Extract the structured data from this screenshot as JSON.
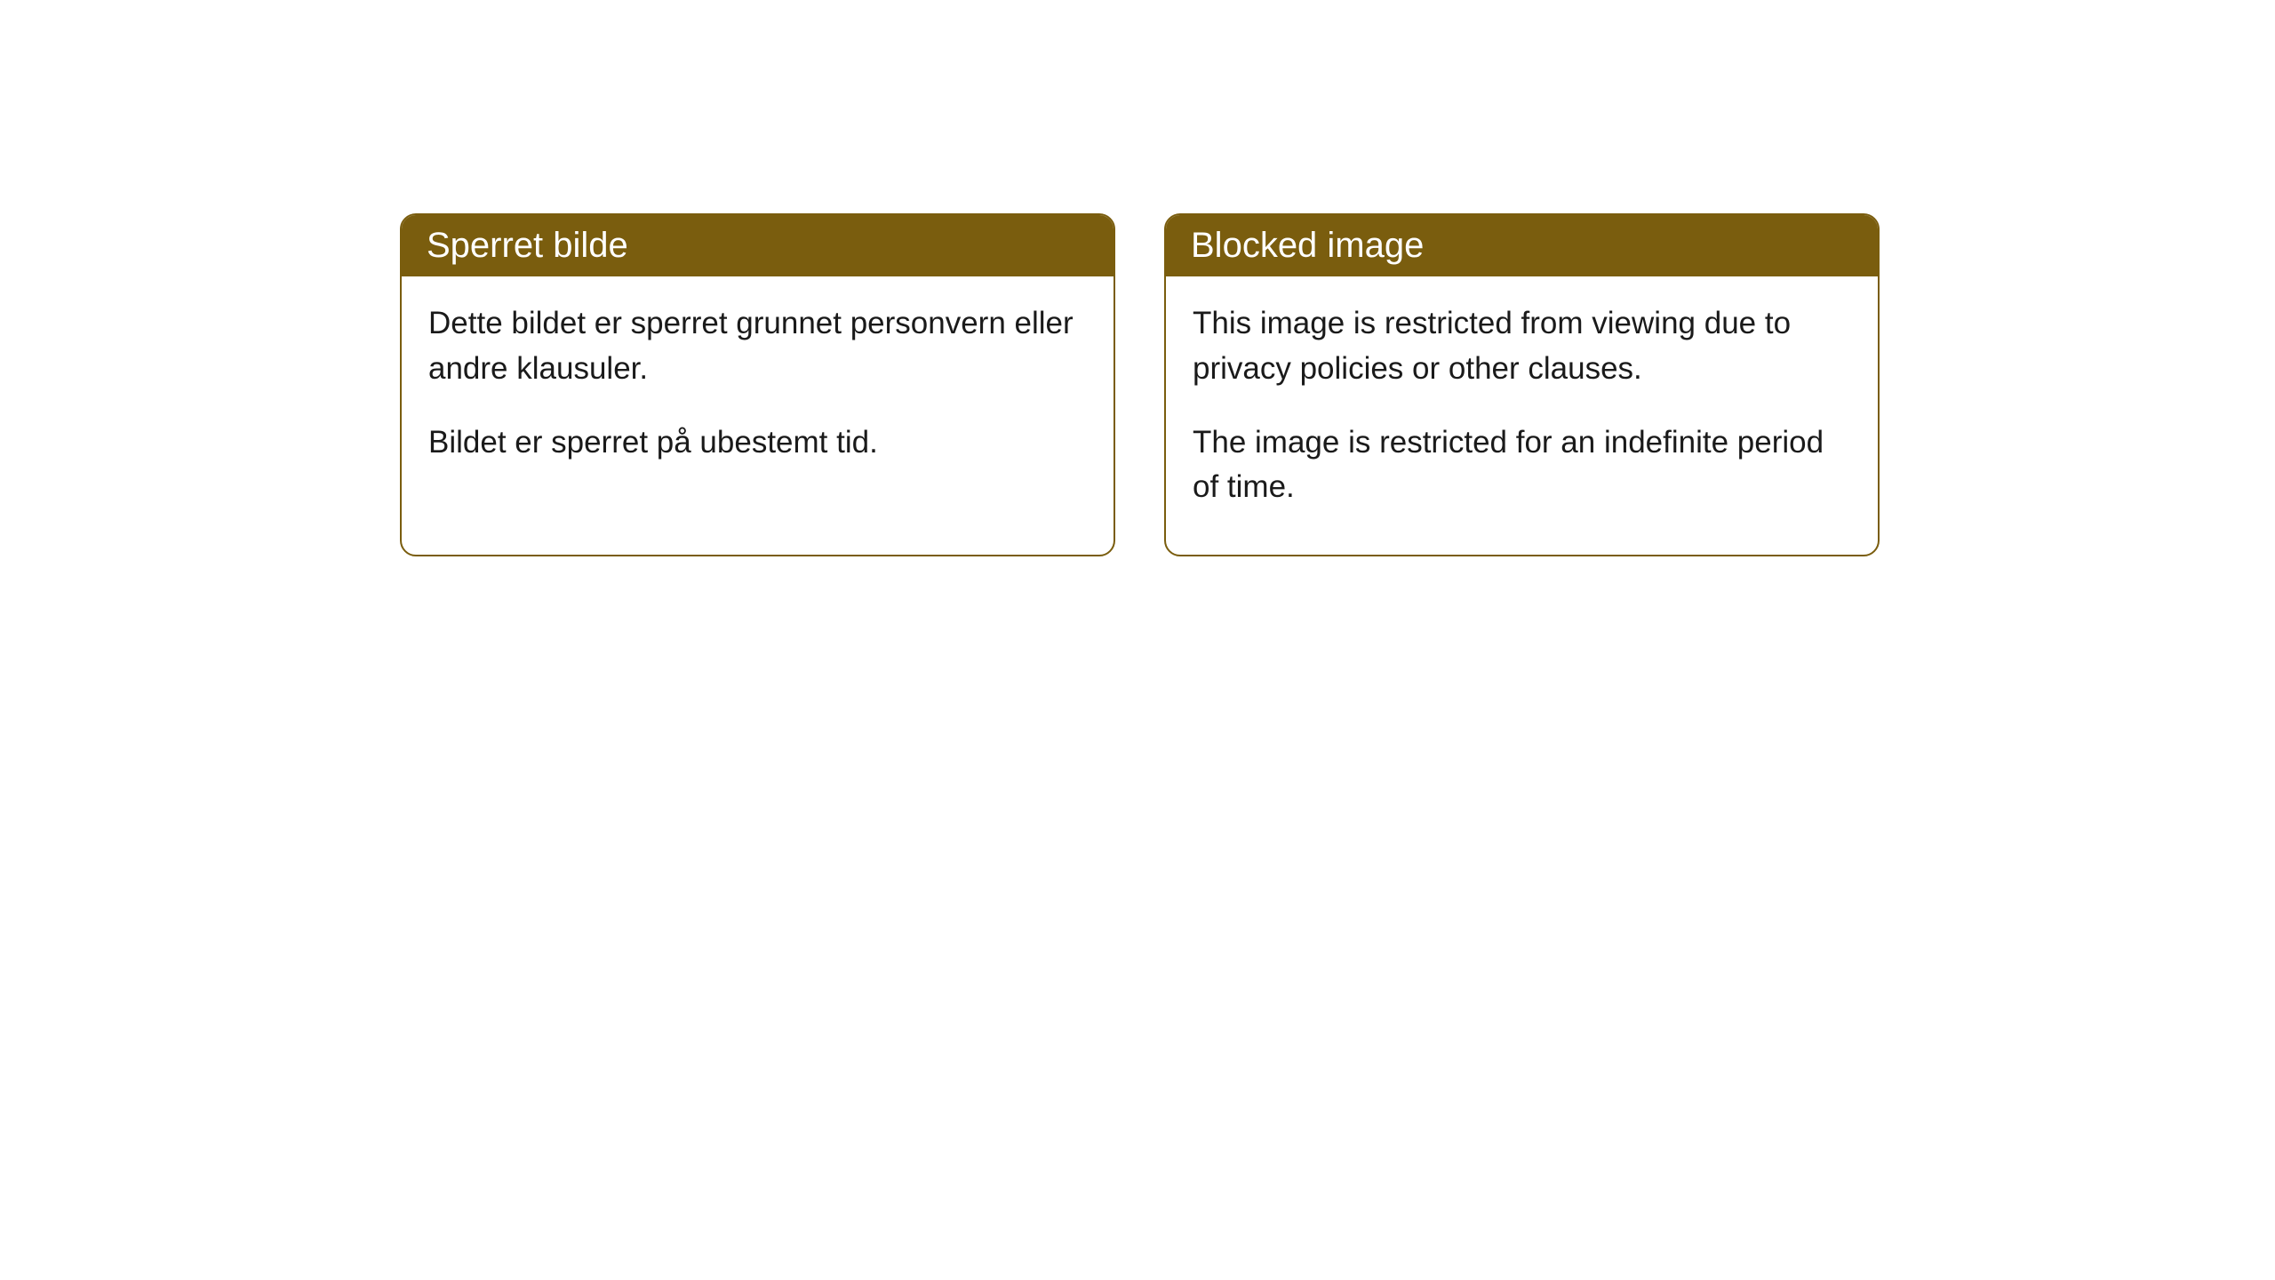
{
  "cards": [
    {
      "title": "Sperret bilde",
      "paragraph1": "Dette bildet er sperret grunnet personvern eller andre klausuler.",
      "paragraph2": "Bildet er sperret på ubestemt tid."
    },
    {
      "title": "Blocked image",
      "paragraph1": "This image is restricted from viewing due to privacy policies or other clauses.",
      "paragraph2": "The image is restricted for an indefinite period of time."
    }
  ],
  "styles": {
    "header_background": "#7a5d0e",
    "header_text_color": "#ffffff",
    "border_color": "#7a5d0e",
    "body_text_color": "#1a1a1a",
    "background_color": "#ffffff",
    "border_radius": 18,
    "title_fontsize": 40,
    "body_fontsize": 35
  }
}
